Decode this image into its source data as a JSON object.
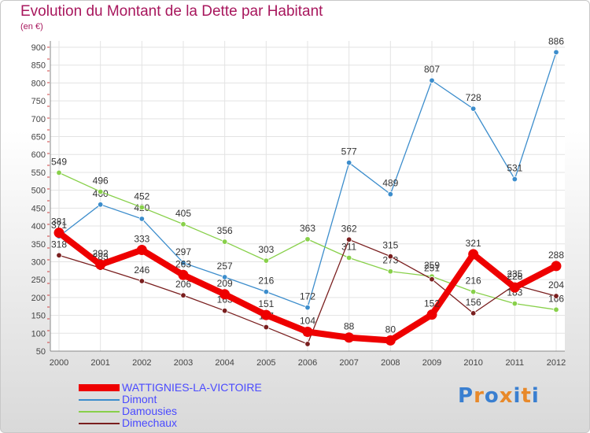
{
  "title": "Evolution du Montant de la Dette par Habitant",
  "subtitle": "(en €)",
  "logo_text": "Proxiti",
  "chart_data": {
    "type": "line",
    "x": [
      "2000",
      "2001",
      "2002",
      "2003",
      "2004",
      "2005",
      "2006",
      "2007",
      "2008",
      "2009",
      "2010",
      "2011",
      "2012"
    ],
    "ylim": [
      50,
      900
    ],
    "yticks": [
      50,
      100,
      150,
      200,
      250,
      300,
      350,
      400,
      450,
      500,
      550,
      600,
      650,
      700,
      750,
      800,
      850,
      900
    ],
    "grid": true,
    "legend_position": "bottom-left",
    "series": [
      {
        "name": "Dimont",
        "color": "#3c8dcc",
        "values": [
          371,
          460,
          420,
          297,
          257,
          216,
          172,
          577,
          489,
          807,
          728,
          531,
          886
        ]
      },
      {
        "name": "Damousies",
        "color": "#88d04a",
        "values": [
          549,
          496,
          452,
          405,
          356,
          303,
          363,
          311,
          273,
          259,
          216,
          183,
          166
        ]
      },
      {
        "name": "Dimechaux",
        "color": "#7a1f1f",
        "values": [
          318,
          283,
          246,
          206,
          163,
          117,
          70,
          362,
          315,
          251,
          156,
          235,
          204
        ]
      },
      {
        "name": "WATTIGNIES-LA-VICTOIRE",
        "color": "#ee0000",
        "values": [
          381,
          292,
          333,
          263,
          209,
          151,
          104,
          88,
          80,
          152,
          321,
          228,
          288
        ]
      }
    ]
  }
}
